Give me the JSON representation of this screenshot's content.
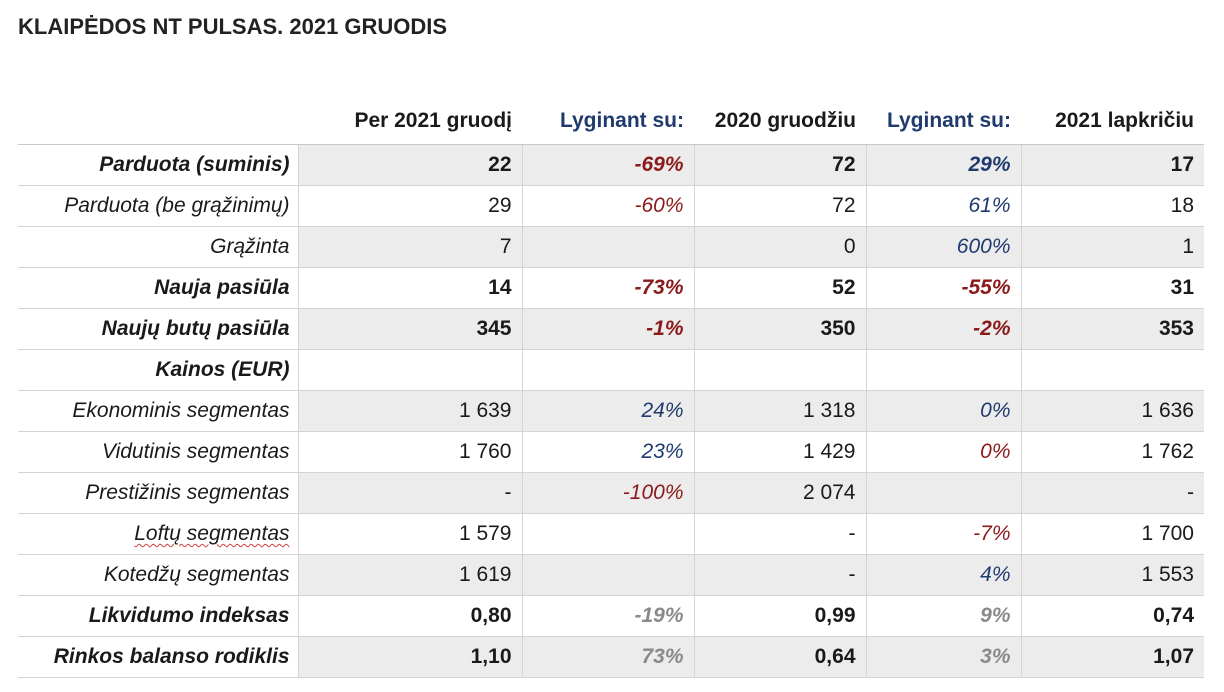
{
  "title": "KLAIPĖDOS NT PULSAS. 2021 GRUODIS",
  "headers": [
    "",
    "Per 2021 gruodį",
    "Lyginant su:",
    "2020 gruodžiu",
    "Lyginant su:",
    "2021 lapkričiu"
  ],
  "rows": [
    {
      "label": "Parduota (suminis)",
      "bold": true,
      "shade": true,
      "cells": [
        "22",
        "-69%",
        "72",
        "29%",
        "17"
      ],
      "styles": [
        "",
        "neg-red",
        "",
        "pos-blue",
        ""
      ]
    },
    {
      "label": "Parduota (be grąžinimų)",
      "bold": false,
      "shade": false,
      "cells": [
        "29",
        "-60%",
        "72",
        "61%",
        "18"
      ],
      "styles": [
        "",
        "neg-red",
        "",
        "pos-blue",
        ""
      ]
    },
    {
      "label": "Grąžinta",
      "bold": false,
      "shade": true,
      "cells": [
        "7",
        "",
        "0",
        "600%",
        "1"
      ],
      "styles": [
        "",
        "",
        "",
        "pos-blue",
        ""
      ]
    },
    {
      "label": "Nauja pasiūla",
      "bold": true,
      "shade": false,
      "cells": [
        "14",
        "-73%",
        "52",
        "-55%",
        "31"
      ],
      "styles": [
        "",
        "neg-red",
        "",
        "neg-red",
        ""
      ]
    },
    {
      "label": "Naujų butų pasiūla",
      "bold": true,
      "shade": true,
      "cells": [
        "345",
        "-1%",
        "350",
        "-2%",
        "353"
      ],
      "styles": [
        "",
        "neg-red",
        "",
        "neg-red",
        ""
      ]
    },
    {
      "label": "Kainos (EUR)",
      "bold": true,
      "shade": false,
      "cells": [
        "",
        "",
        "",
        "",
        ""
      ],
      "styles": [
        "",
        "",
        "",
        "",
        ""
      ]
    },
    {
      "label": "Ekonominis segmentas",
      "bold": false,
      "shade": true,
      "cells": [
        "1 639",
        "24%",
        "1 318",
        "0%",
        "1 636"
      ],
      "styles": [
        "",
        "pos-blue",
        "",
        "pos-blue",
        ""
      ]
    },
    {
      "label": "Vidutinis segmentas",
      "bold": false,
      "shade": false,
      "cells": [
        "1 760",
        "23%",
        "1 429",
        "0%",
        "1 762"
      ],
      "styles": [
        "",
        "pos-blue",
        "",
        "neg-red",
        ""
      ]
    },
    {
      "label": "Prestižinis segmentas",
      "bold": false,
      "shade": true,
      "cells": [
        "-",
        "-100%",
        "2 074",
        "",
        "-"
      ],
      "styles": [
        "",
        "neg-red",
        "",
        "",
        ""
      ]
    },
    {
      "label": "Loftų segmentas",
      "bold": false,
      "shade": false,
      "cells": [
        "1 579",
        "",
        "-",
        "-7%",
        "1 700"
      ],
      "styles": [
        "",
        "",
        "",
        "neg-red",
        ""
      ]
    },
    {
      "label": "Kotedžų segmentas",
      "bold": false,
      "shade": true,
      "cells": [
        "1 619",
        "",
        "-",
        "4%",
        "1 553"
      ],
      "styles": [
        "",
        "",
        "",
        "pos-blue",
        ""
      ]
    },
    {
      "label": "Likvidumo indeksas",
      "bold": true,
      "shade": false,
      "cells": [
        "0,80",
        "-19%",
        "0,99",
        "9%",
        "0,74"
      ],
      "styles": [
        "",
        "grey",
        "",
        "grey",
        ""
      ]
    },
    {
      "label": "Rinkos balanso rodiklis",
      "bold": true,
      "shade": true,
      "cells": [
        "1,10",
        "73%",
        "0,64",
        "3%",
        "1,07"
      ],
      "styles": [
        "",
        "grey",
        "",
        "grey",
        ""
      ]
    }
  ]
}
